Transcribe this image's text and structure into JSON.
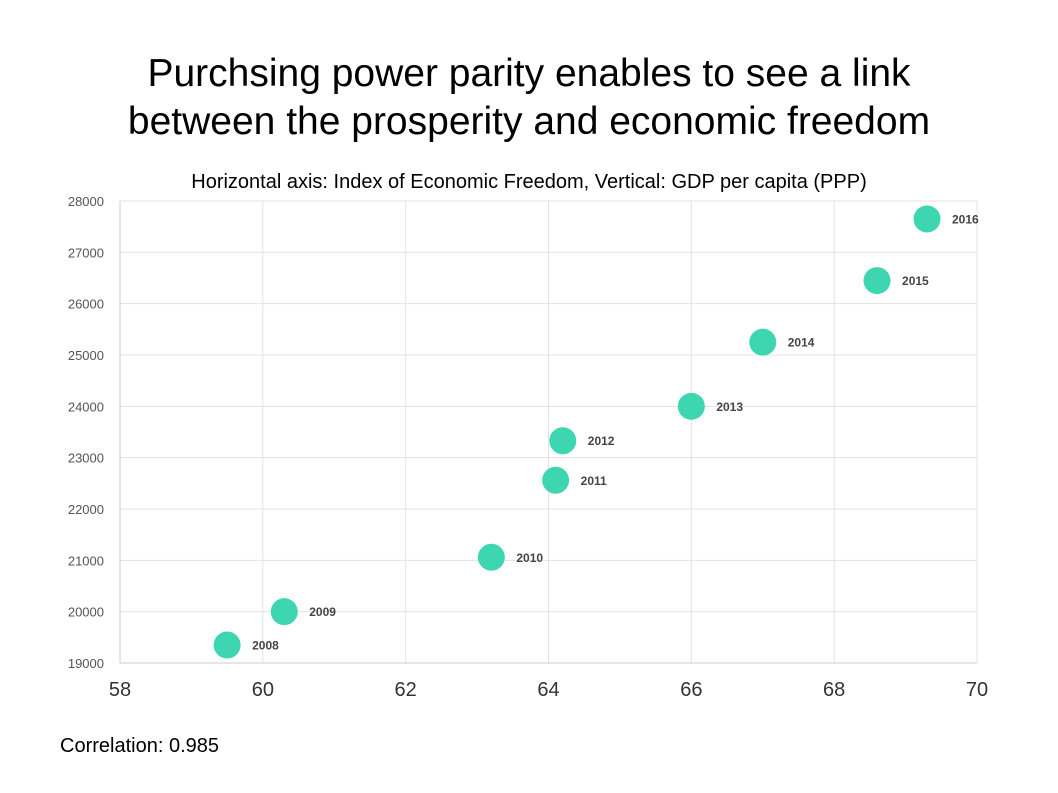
{
  "slide": {
    "title_line1": "Purchsing power parity enables to see a link",
    "title_line2": "between the prosperity and economic freedom",
    "subtitle": "Horizontal axis: Index of Economic Freedom, Vertical: GDP per capita (PPP)",
    "correlation_label": "Correlation:",
    "correlation_value": "0.985"
  },
  "colors": {
    "point": "#3dd6b0",
    "grid": "#e3e3e3",
    "axis": "#cccccc"
  },
  "chart_data": {
    "type": "scatter",
    "xlim": [
      58,
      70
    ],
    "ylim": [
      19000,
      28000
    ],
    "x_ticks": [
      58,
      60,
      62,
      64,
      66,
      68,
      70
    ],
    "y_ticks": [
      19000,
      20000,
      21000,
      22000,
      23000,
      24000,
      25000,
      26000,
      27000,
      28000
    ],
    "grid": true,
    "points": [
      {
        "label": "2008",
        "x": 59.5,
        "y": 19350
      },
      {
        "label": "2009",
        "x": 60.3,
        "y": 20000
      },
      {
        "label": "2010",
        "x": 63.2,
        "y": 21060
      },
      {
        "label": "2011",
        "x": 64.1,
        "y": 22560
      },
      {
        "label": "2012",
        "x": 64.2,
        "y": 23330
      },
      {
        "label": "2013",
        "x": 66.0,
        "y": 24000
      },
      {
        "label": "2014",
        "x": 67.0,
        "y": 25250
      },
      {
        "label": "2015",
        "x": 68.6,
        "y": 26450
      },
      {
        "label": "2016",
        "x": 69.3,
        "y": 27650
      }
    ]
  }
}
